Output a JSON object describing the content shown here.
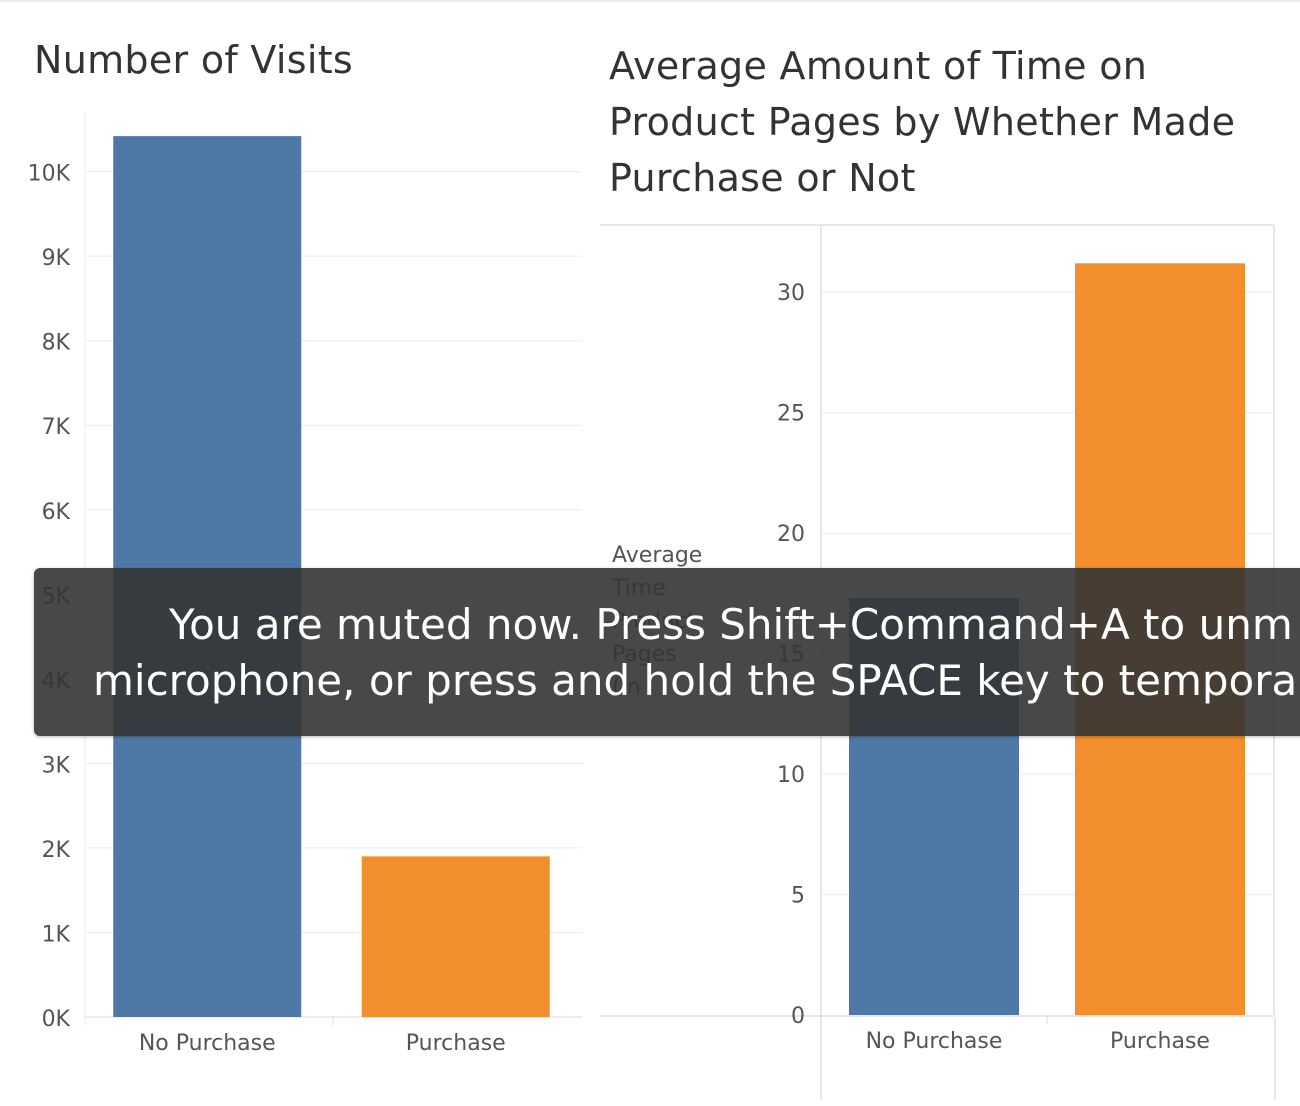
{
  "chart_data": [
    {
      "type": "bar",
      "title": "Number of Visits",
      "categories": [
        "No Purchase",
        "Purchase"
      ],
      "values": [
        10420,
        1900
      ],
      "colors": [
        "#4e79a7",
        "#f28e2b"
      ],
      "ylim": [
        0,
        10800
      ],
      "yticks": [
        {
          "value": 0,
          "label": "0K"
        },
        {
          "value": 1000,
          "label": "1K"
        },
        {
          "value": 2000,
          "label": "2K"
        },
        {
          "value": 3000,
          "label": "3K"
        },
        {
          "value": 4000,
          "label": "4K"
        },
        {
          "value": 5000,
          "label": "5K"
        },
        {
          "value": 6000,
          "label": "6K"
        },
        {
          "value": 7000,
          "label": "7K"
        },
        {
          "value": 8000,
          "label": "8K"
        },
        {
          "value": 9000,
          "label": "9K"
        },
        {
          "value": 10000,
          "label": "10K"
        }
      ],
      "ylabel": "",
      "grid": true
    },
    {
      "type": "bar",
      "title": "Average Amount of Time on Product Pages by Whether Made Purchase or Not",
      "categories": [
        "No Purchase",
        "Purchase"
      ],
      "values": [
        17.3,
        31.2
      ],
      "colors": [
        "#4e79a7",
        "#f28e2b"
      ],
      "ylim": [
        0,
        32.5
      ],
      "yticks": [
        {
          "value": 0,
          "label": "0"
        },
        {
          "value": 5,
          "label": "5"
        },
        {
          "value": 10,
          "label": "10"
        },
        {
          "value": 15,
          "label": "15"
        },
        {
          "value": 20,
          "label": "20"
        },
        {
          "value": 25,
          "label": "25"
        },
        {
          "value": 30,
          "label": "30"
        }
      ],
      "ylabel_lines": [
        "Average",
        "Time",
        "Product",
        "Pages",
        "(in"
      ],
      "grid": true
    }
  ],
  "notification": {
    "line1": "You are muted now. Press Shift+Command+A to unm",
    "line2": "microphone, or press and hold the SPACE key to tempora"
  }
}
